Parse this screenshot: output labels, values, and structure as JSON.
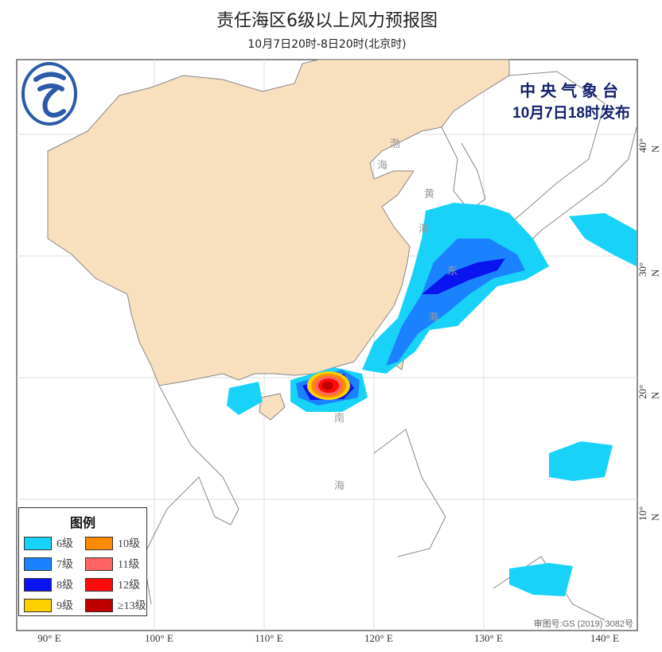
{
  "header": {
    "title": "责任海区6级以上风力预报图",
    "subtitle": "10月7日20时-8日20时(北京时)"
  },
  "publisher": {
    "org": "中央气象台",
    "issue_time": "10月7日18时发布",
    "logo_icon": "cma-logo-icon"
  },
  "legend": {
    "title": "图例",
    "items": [
      {
        "label": "6级",
        "color": "#19d2f8"
      },
      {
        "label": "10级",
        "color": "#ff8a00"
      },
      {
        "label": "7级",
        "color": "#1a82ff"
      },
      {
        "label": "11级",
        "color": "#ff6464"
      },
      {
        "label": "8级",
        "color": "#0a14f0"
      },
      {
        "label": "12级",
        "color": "#ff0a0a"
      },
      {
        "label": "9级",
        "color": "#ffd000"
      },
      {
        "label": "≥13级",
        "color": "#c00000"
      }
    ]
  },
  "sea_labels": [
    "渤",
    "海",
    "黄",
    "海",
    "东",
    "海",
    "南",
    "海"
  ],
  "axes": {
    "longitude": [
      "90° E",
      "100° E",
      "110° E",
      "120° E",
      "130° E",
      "140° E"
    ],
    "latitude": [
      "40° N",
      "30° N",
      "20° N",
      "10° N"
    ]
  },
  "approval": "审图号:GS (2019) 3082号",
  "colors": {
    "land": "#f8dfbd",
    "sea": "#ffffff",
    "border": "#777777"
  }
}
